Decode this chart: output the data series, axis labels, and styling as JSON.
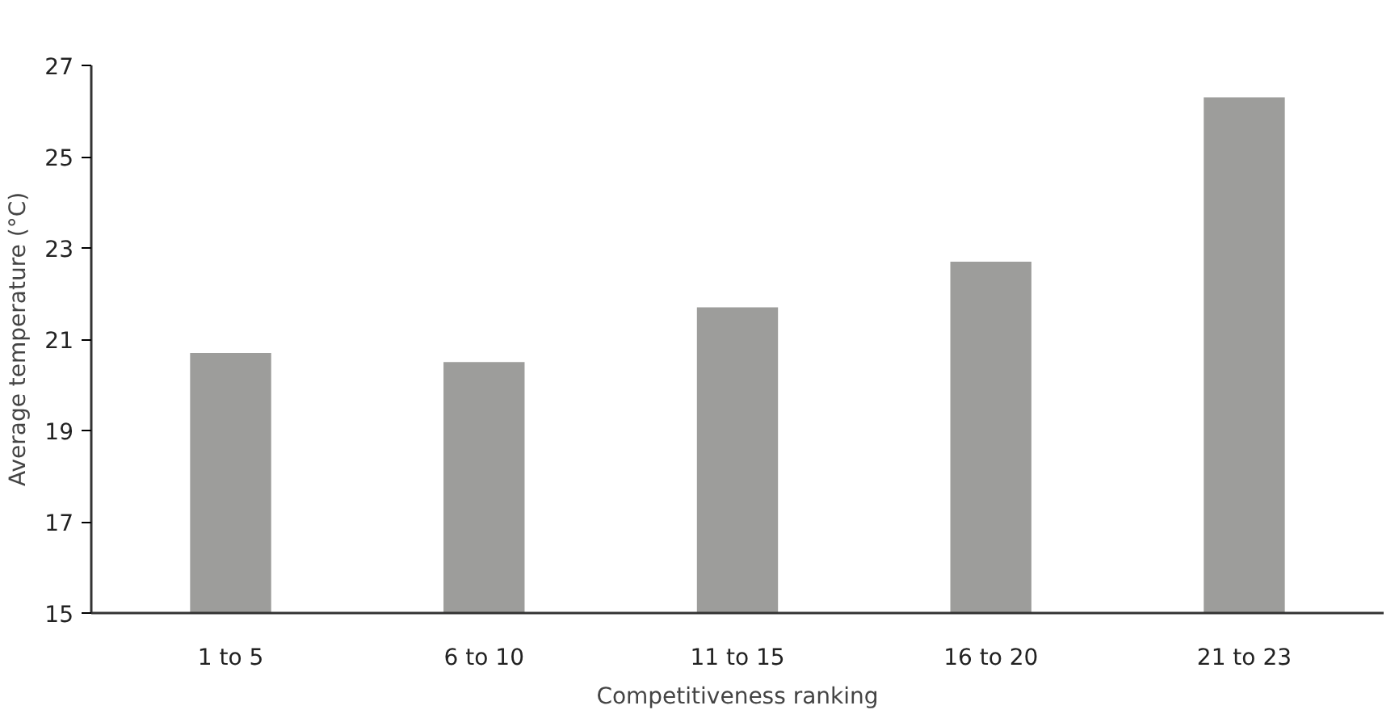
{
  "chart_data": {
    "type": "bar",
    "xlabel": "Competitiveness ranking",
    "ylabel": "Average temperature (°C)",
    "categories": [
      "1 to 5",
      "6 to 10",
      "11 to 15",
      "16 to 20",
      "21 to 23"
    ],
    "values": [
      20.7,
      20.5,
      21.7,
      22.7,
      26.3
    ],
    "color": "#9d9d9b",
    "ylim": [
      15,
      27
    ],
    "yticks": [
      15,
      17,
      19,
      21,
      23,
      25,
      27
    ],
    "grid": false
  }
}
